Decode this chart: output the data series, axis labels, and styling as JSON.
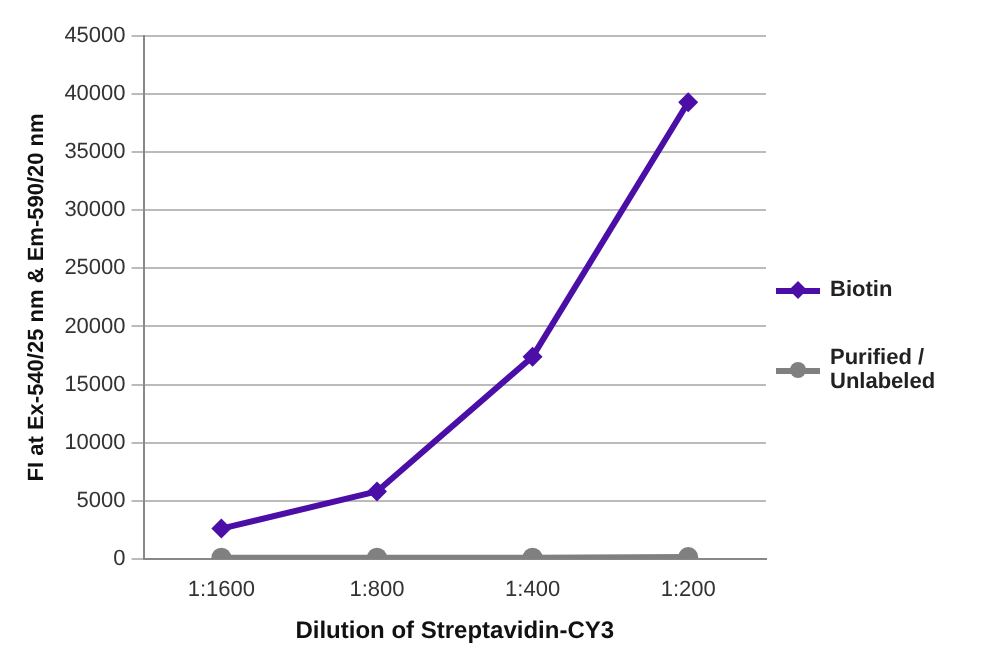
{
  "chart_data": {
    "type": "line",
    "xlabel": "Dilution of Streptavidin-CY3",
    "ylabel": "FI at Ex-540/25 nm & Em-590/20 nm",
    "categories": [
      "1:1600",
      "1:800",
      "1:400",
      "1:200"
    ],
    "series": [
      {
        "name": "Biotin",
        "color": "#4b0fa8",
        "marker": "diamond",
        "values": [
          2600,
          5800,
          17400,
          39300
        ]
      },
      {
        "name": "Purified / Unlabeled",
        "color": "#808080",
        "marker": "circle",
        "values": [
          100,
          100,
          100,
          150
        ]
      }
    ],
    "ylim": [
      0,
      45000
    ],
    "yticks": [
      0,
      5000,
      10000,
      15000,
      20000,
      25000,
      30000,
      35000,
      40000,
      45000
    ],
    "grid": "y",
    "legend": "right",
    "line_style": "solid"
  }
}
